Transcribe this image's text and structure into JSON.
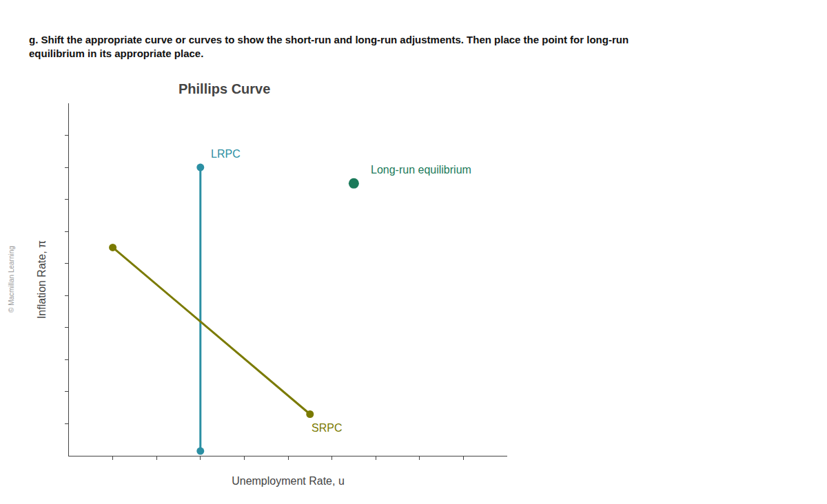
{
  "chart_data": {
    "type": "line",
    "title": "Phillips Curve",
    "subtitle": [
      "g. Shift the appropriate curve or curves to show the short-run and long-run adjustments. Then place the point for long-run",
      "equilibrium in its appropriate place."
    ],
    "xlabel": "Unemployment Rate, u",
    "ylabel": "Inflation Rate, π",
    "xlim": [
      0,
      10
    ],
    "ylim": [
      0,
      11
    ],
    "xticks": [
      1,
      2,
      3,
      4,
      5,
      6,
      7,
      8,
      9
    ],
    "yticks": [
      1,
      2,
      3,
      4,
      5,
      6,
      7,
      8,
      9,
      10
    ],
    "tick_labels": false,
    "grid": false,
    "series": [
      {
        "type": "line",
        "x": [
          3.0,
          3.0
        ],
        "values": [
          0.15,
          9.0
        ],
        "color": "#2B8FA3",
        "marker": "circle",
        "line_style": "solid"
      },
      {
        "type": "line",
        "x": [
          1.0,
          5.5
        ],
        "values": [
          6.5,
          1.3
        ],
        "color": "#7A7A00",
        "marker": "circle",
        "line_style": "solid"
      },
      {
        "type": "scatter",
        "x": [
          6.5
        ],
        "values": [
          8.5
        ],
        "color": "#1B7A5A",
        "marker": "circle"
      }
    ],
    "annotations": [
      {
        "text": "LRPC",
        "x": 3.2,
        "y": 9.2,
        "color": "#2B8FA3"
      },
      {
        "text": "SRPC",
        "x": 5.5,
        "y": 1.1,
        "color": "#7A7A00"
      },
      {
        "text": "Long-run equilibrium",
        "x": 6.85,
        "y": 8.7,
        "color": "#1B7A5A"
      },
      {
        "text": "© Macmillan Learning"
      }
    ]
  }
}
